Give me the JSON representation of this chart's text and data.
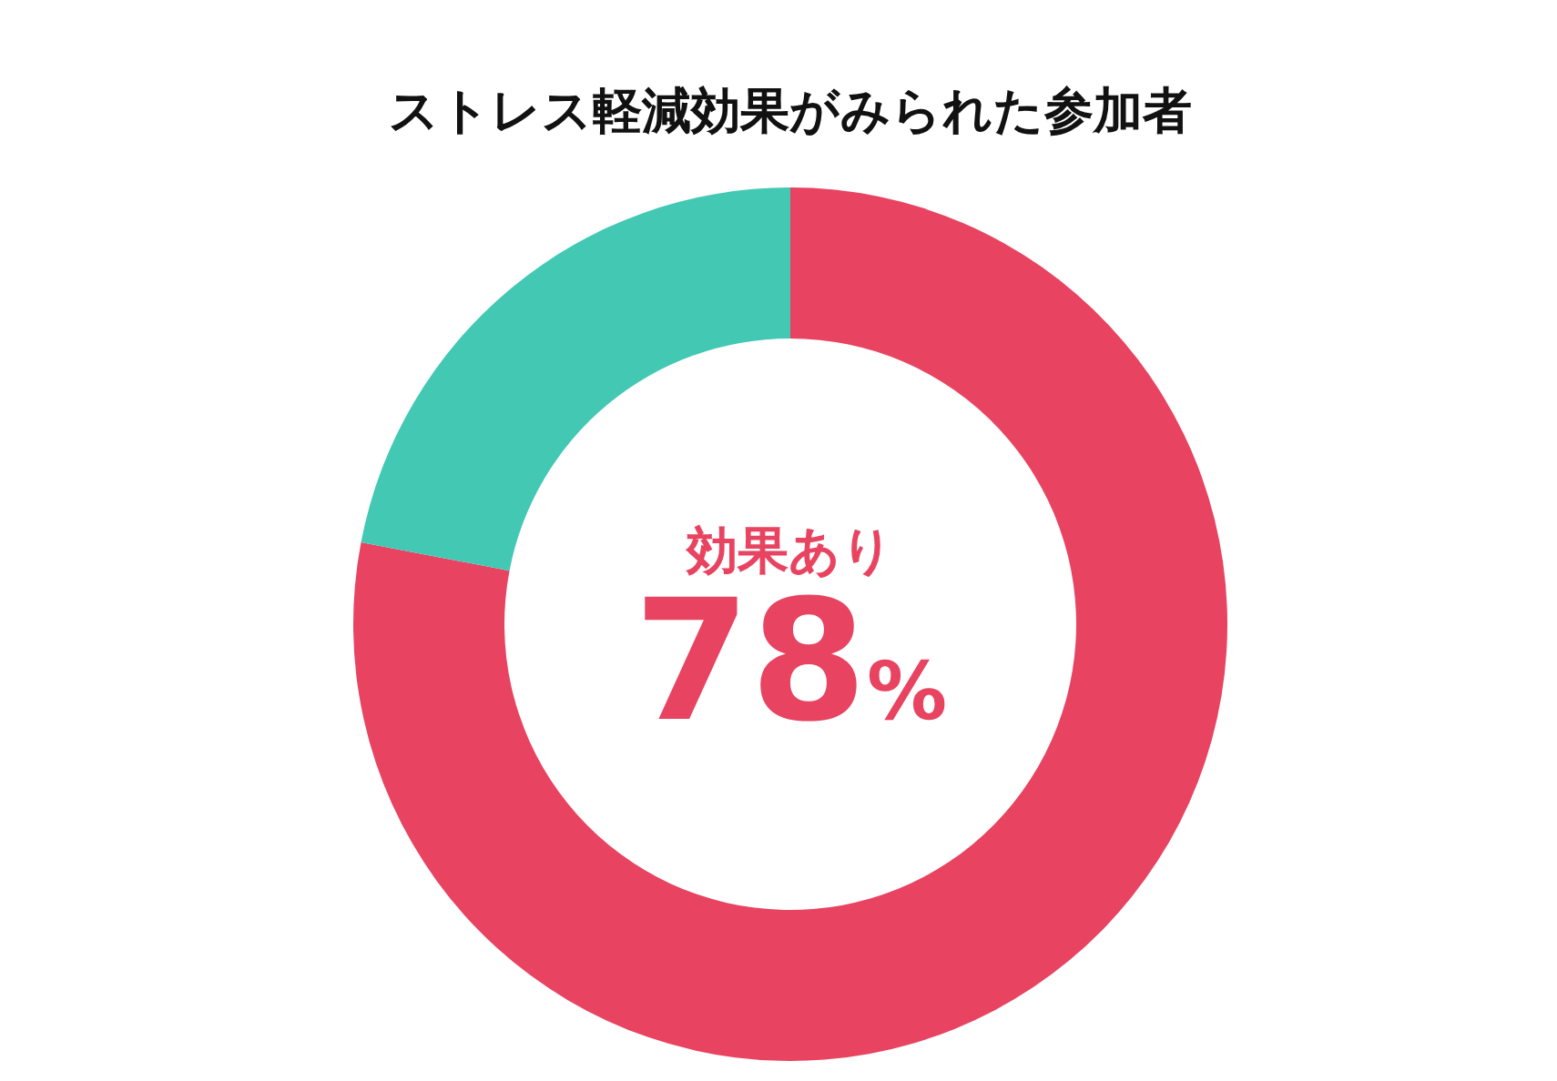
{
  "chart_data": {
    "type": "donut",
    "title": "ストレス軽減効果がみられた参加者",
    "categories": [
      "効果あり",
      null
    ],
    "values": [
      78,
      22
    ],
    "colors": [
      "#e84360",
      "#43c8b4"
    ],
    "value_labels": [
      "78%",
      null
    ]
  }
}
